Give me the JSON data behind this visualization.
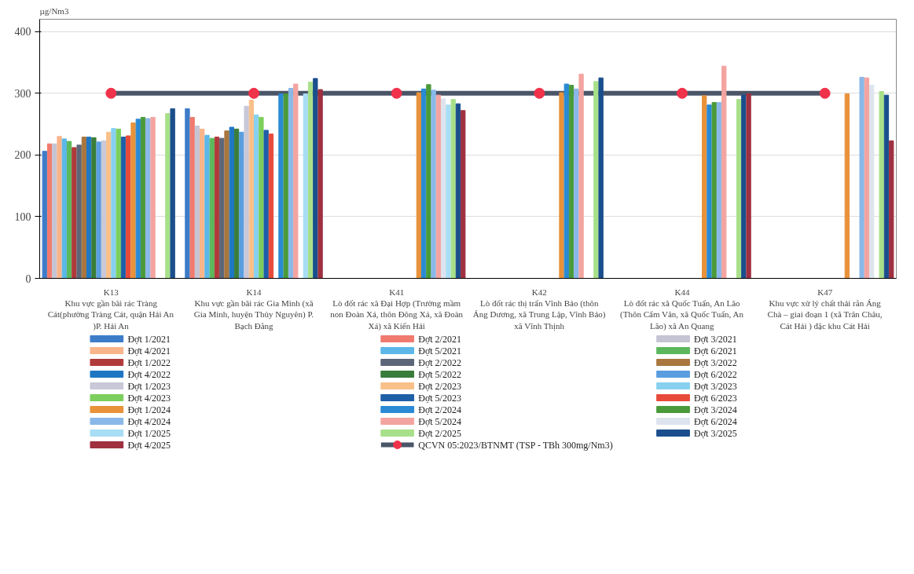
{
  "chart_data": {
    "type": "bar",
    "ylabel": "µg/Nm3",
    "categories": [
      "K13\nKhu vực gần bãi rác Tràng Cát(phường Tràng Cát, quận Hải An )P. Hải An",
      "K14\nKhu vực gần bãi rác Gia Minh (xã Gia Minh, huyện Thủy Nguyên) P. Bạch Đằng",
      "K41\nLò đốt rác xã Đại Hợp (Trường mầm non Đoàn Xá, thôn Đông Xá, xã Đoàn Xá) xã Kiến Hải",
      "K42\nLò đốt rác thị trấn Vĩnh Bảo (thôn Áng Dương, xã Trung Lập, Vĩnh Bảo) xã Vĩnh Thịnh",
      "K44\nLò đốt rác xã Quốc Tuấn, An Lão (Thôn Cẩm Văn, xã Quốc Tuấn, An Lão) xã An Quang",
      "K47\nKhu vực xử lý chất thải rắn Áng Chà – giai đoạn 1 (xã Trân Châu, Cát Hải ) đặc khu Cát Hải"
    ],
    "ylim": [
      0,
      420
    ],
    "yticks": [
      0,
      100,
      200,
      300,
      400
    ],
    "grid": "y",
    "legend": "bottom",
    "marker": "circle",
    "series": [
      {
        "name": "Đợt 1/2021",
        "color": "#3d7cc9",
        "values": [
          206,
          275,
          null,
          null,
          null,
          null
        ]
      },
      {
        "name": "Đợt 2/2021",
        "color": "#f07a6e",
        "values": [
          218,
          261,
          null,
          null,
          null,
          null
        ]
      },
      {
        "name": "Đợt 3/2021",
        "color": "#c4c4d4",
        "values": [
          218,
          247,
          null,
          null,
          null,
          null
        ]
      },
      {
        "name": "Đợt 4/2021",
        "color": "#f9b48a",
        "values": [
          230,
          242,
          null,
          null,
          null,
          null
        ]
      },
      {
        "name": "Đợt 5/2021",
        "color": "#5bb8e8",
        "values": [
          226,
          232,
          null,
          null,
          null,
          null
        ]
      },
      {
        "name": "Đợt 6/2021",
        "color": "#5cb85c",
        "values": [
          222,
          227,
          null,
          null,
          null,
          null
        ]
      },
      {
        "name": "Đợt 1/2022",
        "color": "#b03a3a",
        "values": [
          212,
          229,
          null,
          null,
          null,
          null
        ]
      },
      {
        "name": "Đợt 2/2022",
        "color": "#5c6678",
        "values": [
          216,
          227,
          null,
          null,
          null,
          null
        ]
      },
      {
        "name": "Đợt 3/2022",
        "color": "#a8763e",
        "values": [
          229,
          239,
          null,
          null,
          null,
          null
        ]
      },
      {
        "name": "Đợt 4/2022",
        "color": "#1f77c4",
        "values": [
          229,
          245,
          null,
          null,
          null,
          null
        ]
      },
      {
        "name": "Đợt 5/2022",
        "color": "#3a7d3a",
        "values": [
          228,
          242,
          null,
          null,
          null,
          null
        ]
      },
      {
        "name": "Đợt 6/2022",
        "color": "#5a9ee0",
        "values": [
          221,
          237,
          null,
          null,
          null,
          null
        ]
      },
      {
        "name": "Đợt 1/2023",
        "color": "#c8c8d8",
        "values": [
          223,
          279,
          null,
          null,
          null,
          null
        ]
      },
      {
        "name": "Đợt 2/2023",
        "color": "#f9c08a",
        "values": [
          237,
          289,
          null,
          null,
          null,
          null
        ]
      },
      {
        "name": "Đợt 3/2023",
        "color": "#87d0f0",
        "values": [
          243,
          265,
          null,
          null,
          null,
          null
        ]
      },
      {
        "name": "Đợt 4/2023",
        "color": "#7ccf5c",
        "values": [
          242,
          261,
          null,
          null,
          null,
          null
        ]
      },
      {
        "name": "Đợt 5/2023",
        "color": "#1f5fa8",
        "values": [
          229,
          240,
          null,
          null,
          null,
          null
        ]
      },
      {
        "name": "Đợt 6/2023",
        "color": "#e84a3a",
        "values": [
          231,
          234,
          null,
          null,
          null,
          null
        ]
      },
      {
        "name": "Đợt 1/2024",
        "color": "#e8923a",
        "values": [
          252,
          null,
          301,
          301,
          296,
          299
        ]
      },
      {
        "name": "Đợt 2/2024",
        "color": "#2a8ad4",
        "values": [
          258,
          299,
          307,
          315,
          281,
          null
        ]
      },
      {
        "name": "Đợt 3/2024",
        "color": "#4a9a3a",
        "values": [
          261,
          299,
          314,
          313,
          285,
          null
        ]
      },
      {
        "name": "Đợt 4/2024",
        "color": "#8ab8e8",
        "values": [
          259,
          308,
          305,
          307,
          285,
          326
        ]
      },
      {
        "name": "Đợt 5/2024",
        "color": "#f4a4a0",
        "values": [
          261,
          315,
          297,
          331,
          344,
          325
        ]
      },
      {
        "name": "Đợt 6/2024",
        "color": "#dde4ee",
        "values": [
          null,
          null,
          291,
          null,
          null,
          313
        ]
      },
      {
        "name": "Đợt 1/2025",
        "color": "#a8def5",
        "values": [
          null,
          299,
          281,
          null,
          null,
          null
        ]
      },
      {
        "name": "Đợt 2/2025",
        "color": "#a8e08a",
        "values": [
          267,
          318,
          290,
          319,
          290,
          303
        ]
      },
      {
        "name": "Đợt 3/2025",
        "color": "#1a4e8c",
        "values": [
          275,
          324,
          283,
          325,
          297,
          297
        ]
      },
      {
        "name": "Đợt 4/2025",
        "color": "#9e3040",
        "values": [
          null,
          306,
          272,
          null,
          299,
          223
        ]
      },
      {
        "name": "QCVN 05:2023/BTNMT (TSP - TBh 300mg/Nm3)",
        "type": "line",
        "color": "#4a5568",
        "colors": [
          "#f0324a",
          "#f0324a",
          "#f0324a",
          "#f0324a",
          "#f0324a",
          "#f0324a"
        ],
        "values": [
          300,
          300,
          300,
          300,
          300,
          300
        ]
      }
    ]
  }
}
